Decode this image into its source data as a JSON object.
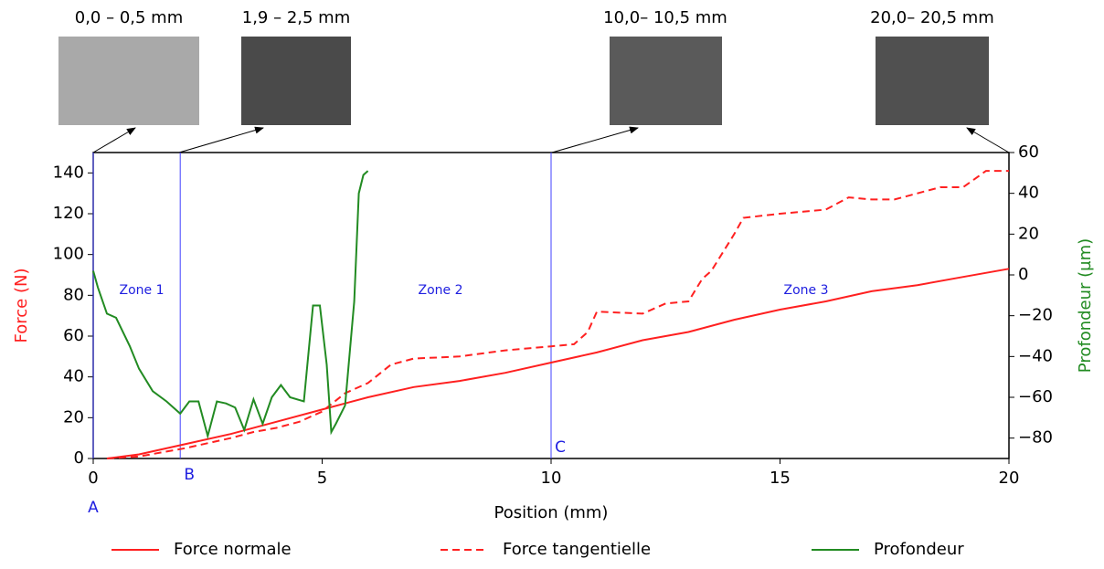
{
  "chart_data": {
    "type": "line",
    "insets": [
      {
        "caption": "0,0 – 0,5 mm"
      },
      {
        "caption": "1,9 – 2,5 mm"
      },
      {
        "caption": "10,0– 10,5 mm"
      },
      {
        "caption": "20,0– 20,5 mm"
      }
    ],
    "xlabel": "Position (mm)",
    "ylabel": "Force (N)",
    "y2label": "Profondeur (µm)",
    "xlim": [
      0,
      20
    ],
    "xticks": [
      0,
      5,
      10,
      15,
      20
    ],
    "ylim": [
      0,
      150
    ],
    "yticks": [
      0,
      20,
      40,
      60,
      80,
      100,
      120,
      140
    ],
    "y2lim": [
      -90,
      60
    ],
    "y2ticks": [
      {
        "value": -80,
        "label": "−80"
      },
      {
        "value": -60,
        "label": "−60"
      },
      {
        "value": -40,
        "label": "−40"
      },
      {
        "value": -20,
        "label": "−20"
      },
      0,
      20,
      40,
      60
    ],
    "markers": [
      {
        "label": "A",
        "x": 0
      },
      {
        "label": "B",
        "x": 1.9
      },
      {
        "label": "C",
        "x": 10
      }
    ],
    "zones": [
      "Zone 1",
      "Zone 2",
      "Zone 3"
    ],
    "series": [
      {
        "name": "Force normale",
        "color": "#ff2020",
        "dashed": false,
        "x": [
          0.3,
          1,
          2,
          3,
          4,
          5,
          6,
          7,
          8,
          9,
          10,
          11,
          12,
          13,
          14,
          15,
          16,
          17,
          18,
          19,
          20
        ],
        "values": [
          0,
          2,
          7,
          12,
          18,
          24,
          30,
          35,
          38,
          42,
          47,
          52,
          58,
          62,
          68,
          73,
          77,
          82,
          85,
          89,
          93
        ]
      },
      {
        "name": "Force tangentielle",
        "color": "#ff2020",
        "dashed": true,
        "x": [
          0.3,
          1,
          2,
          3,
          3.5,
          4,
          4.5,
          5,
          5.5,
          6,
          6.5,
          7,
          8,
          9,
          10,
          10.5,
          10.8,
          11,
          12,
          12.5,
          13,
          13.3,
          13.5,
          14,
          14.2,
          15,
          15.5,
          16,
          16.5,
          17,
          17.5,
          18,
          18.5,
          19,
          19.5,
          20
        ],
        "values": [
          0,
          1,
          5,
          10,
          13,
          15,
          18,
          23,
          32,
          37,
          46,
          49,
          50,
          53,
          55,
          56,
          62,
          72,
          71,
          76,
          77,
          88,
          92,
          110,
          118,
          120,
          121,
          122,
          128,
          127,
          127,
          130,
          133,
          133,
          141,
          141
        ]
      },
      {
        "name": "Profondeur",
        "color": "#228b22",
        "dashed": false,
        "axis": "y2",
        "x": [
          0,
          0.1,
          0.3,
          0.5,
          0.8,
          1,
          1.3,
          1.6,
          1.9,
          2.1,
          2.3,
          2.5,
          2.7,
          2.9,
          3.1,
          3.3,
          3.5,
          3.7,
          3.9,
          4.1,
          4.3,
          4.6,
          4.8,
          4.95,
          5.1,
          5.2,
          5.3,
          5.5,
          5.7,
          5.8,
          5.9,
          6.0
        ],
        "values": [
          2,
          -6,
          -19,
          -21,
          -35,
          -46,
          -57,
          -62,
          -68,
          -62,
          -62,
          -79,
          -62,
          -63,
          -65,
          -76,
          -61,
          -73,
          -60,
          -54,
          -60,
          -62,
          -15,
          -15,
          -44,
          -77,
          -73,
          -64,
          -13,
          40,
          49,
          51
        ]
      }
    ]
  }
}
